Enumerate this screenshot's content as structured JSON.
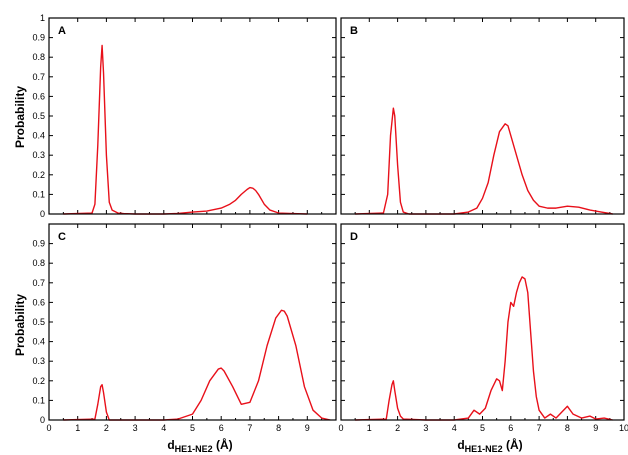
{
  "figure": {
    "ylabel": "Probability",
    "xlabel_main": "d",
    "xlabel_sub": "HE1-NE2",
    "xlabel_unit": " (Å)"
  },
  "chart_data": [
    {
      "type": "line",
      "panel": "A",
      "xlim": [
        0,
        10
      ],
      "ylim": [
        0,
        1
      ],
      "yticks": [
        "0",
        "0.1",
        "0.2",
        "0.3",
        "0.4",
        "0.5",
        "0.6",
        "0.7",
        "0.8",
        "0.9",
        "1"
      ],
      "xticks": [
        "0",
        "1",
        "2",
        "3",
        "4",
        "5",
        "6",
        "7",
        "8",
        "9",
        "10"
      ],
      "show_xticklabels": false,
      "color": "#e8101a",
      "x": [
        0.5,
        1.5,
        1.6,
        1.7,
        1.8,
        1.85,
        1.9,
        2.0,
        2.1,
        2.2,
        2.4,
        2.6,
        3.0,
        4.0,
        4.5,
        5.0,
        5.5,
        6.0,
        6.3,
        6.5,
        6.7,
        6.9,
        7.0,
        7.1,
        7.2,
        7.3,
        7.5,
        7.7,
        8.0,
        8.5,
        9.0
      ],
      "y": [
        0,
        0.005,
        0.05,
        0.35,
        0.75,
        0.86,
        0.72,
        0.3,
        0.06,
        0.02,
        0.005,
        0.002,
        0,
        0,
        0.003,
        0.01,
        0.015,
        0.03,
        0.05,
        0.07,
        0.1,
        0.125,
        0.135,
        0.132,
        0.12,
        0.1,
        0.05,
        0.02,
        0.005,
        0.002,
        0
      ]
    },
    {
      "type": "line",
      "panel": "B",
      "xlim": [
        0,
        10
      ],
      "ylim": [
        0,
        1
      ],
      "xticks": [
        "0",
        "1",
        "2",
        "3",
        "4",
        "5",
        "6",
        "7",
        "8",
        "9",
        "10"
      ],
      "show_xticklabels": false,
      "color": "#e8101a",
      "x": [
        0.5,
        1.5,
        1.65,
        1.75,
        1.85,
        1.9,
        2.0,
        2.1,
        2.2,
        2.4,
        3.0,
        4.0,
        4.5,
        4.8,
        5.0,
        5.2,
        5.4,
        5.6,
        5.8,
        5.9,
        6.0,
        6.2,
        6.4,
        6.6,
        6.8,
        7.0,
        7.3,
        7.6,
        8.0,
        8.4,
        8.8,
        9.2,
        9.6
      ],
      "y": [
        0,
        0.005,
        0.1,
        0.4,
        0.54,
        0.5,
        0.25,
        0.06,
        0.01,
        0,
        0,
        0,
        0.01,
        0.03,
        0.08,
        0.16,
        0.3,
        0.42,
        0.46,
        0.45,
        0.4,
        0.3,
        0.2,
        0.12,
        0.07,
        0.04,
        0.03,
        0.03,
        0.04,
        0.035,
        0.02,
        0.01,
        0
      ]
    },
    {
      "type": "line",
      "panel": "C",
      "xlim": [
        0,
        10
      ],
      "ylim": [
        0,
        1
      ],
      "yticks": [
        "0",
        "0.1",
        "0.2",
        "0.3",
        "0.4",
        "0.5",
        "0.6",
        "0.7",
        "0.8",
        "0.9"
      ],
      "xticks": [
        "0",
        "1",
        "2",
        "3",
        "4",
        "5",
        "6",
        "7",
        "8",
        "9",
        "10"
      ],
      "xticklabels": [
        "0",
        "1",
        "2",
        "3",
        "4",
        "5",
        "6",
        "7",
        "8",
        "9"
      ],
      "show_xticklabels": true,
      "color": "#e8101a",
      "x": [
        0.5,
        1.6,
        1.7,
        1.8,
        1.85,
        1.9,
        2.0,
        2.1,
        3.0,
        4.0,
        4.5,
        5.0,
        5.3,
        5.6,
        5.9,
        6.0,
        6.1,
        6.4,
        6.7,
        7.0,
        7.3,
        7.6,
        7.9,
        8.1,
        8.2,
        8.3,
        8.6,
        8.9,
        9.2,
        9.5,
        9.8
      ],
      "y": [
        0,
        0.005,
        0.08,
        0.17,
        0.18,
        0.14,
        0.04,
        0,
        0,
        0,
        0.005,
        0.03,
        0.1,
        0.2,
        0.26,
        0.265,
        0.25,
        0.17,
        0.08,
        0.09,
        0.2,
        0.38,
        0.52,
        0.56,
        0.555,
        0.53,
        0.38,
        0.17,
        0.05,
        0.01,
        0
      ]
    },
    {
      "type": "line",
      "panel": "D",
      "xlim": [
        0,
        10
      ],
      "ylim": [
        0,
        1
      ],
      "xticks": [
        "0",
        "1",
        "2",
        "3",
        "4",
        "5",
        "6",
        "7",
        "8",
        "9",
        "10"
      ],
      "show_xticklabels": true,
      "color": "#e8101a",
      "x": [
        0.5,
        1.6,
        1.7,
        1.8,
        1.85,
        1.9,
        2.0,
        2.1,
        2.2,
        3.0,
        4.0,
        4.5,
        4.7,
        4.9,
        5.1,
        5.3,
        5.5,
        5.6,
        5.7,
        5.8,
        5.9,
        6.0,
        6.1,
        6.2,
        6.3,
        6.4,
        6.5,
        6.6,
        6.7,
        6.8,
        6.9,
        7.0,
        7.2,
        7.4,
        7.6,
        7.8,
        8.0,
        8.2,
        8.5,
        8.8,
        9.0,
        9.3,
        9.6
      ],
      "y": [
        0,
        0.005,
        0.1,
        0.18,
        0.2,
        0.15,
        0.06,
        0.02,
        0.005,
        0,
        0,
        0.01,
        0.05,
        0.03,
        0.06,
        0.15,
        0.21,
        0.2,
        0.15,
        0.3,
        0.5,
        0.6,
        0.58,
        0.65,
        0.7,
        0.73,
        0.72,
        0.65,
        0.45,
        0.25,
        0.12,
        0.05,
        0.01,
        0.03,
        0.01,
        0.04,
        0.07,
        0.03,
        0.01,
        0.02,
        0.005,
        0.01,
        0
      ]
    }
  ]
}
